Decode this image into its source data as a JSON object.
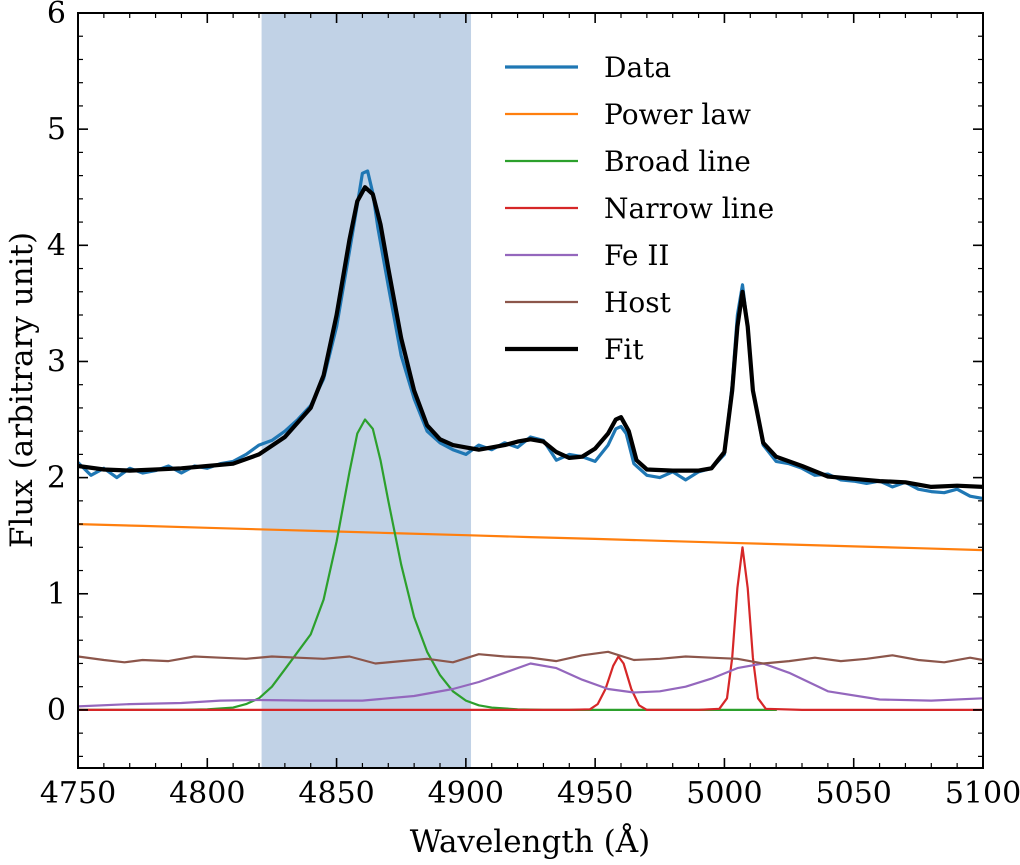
{
  "chart_data": {
    "type": "line",
    "title": "",
    "xlabel": "Wavelength (Å)",
    "ylabel": "Flux (arbitrary unit)",
    "xlim": [
      4750,
      5100
    ],
    "ylim": [
      -0.5,
      6
    ],
    "xticks": [
      4750,
      4800,
      4850,
      4900,
      4950,
      5000,
      5050,
      5100
    ],
    "yticks": [
      0,
      1,
      2,
      3,
      4,
      5,
      6
    ],
    "xtick_labels": [
      "4750",
      "4800",
      "4850",
      "4900",
      "4950",
      "5000",
      "5050",
      "5100"
    ],
    "ytick_labels": [
      "0",
      "1",
      "2",
      "3",
      "4",
      "5",
      "6"
    ],
    "shaded_region": {
      "x0": 4821,
      "x1": 4902,
      "color": "#c1d2e6"
    },
    "grid": false,
    "legend_position": "top-right",
    "series": [
      {
        "name": "Data",
        "color": "#1f77b4",
        "width": 3.2,
        "x": [
          4750,
          4755,
          4760,
          4765,
          4770,
          4775,
          4780,
          4785,
          4790,
          4795,
          4800,
          4805,
          4810,
          4815,
          4820,
          4825,
          4830,
          4835,
          4840,
          4845,
          4850,
          4855,
          4858,
          4860,
          4862,
          4864,
          4866,
          4870,
          4875,
          4880,
          4885,
          4890,
          4895,
          4900,
          4905,
          4910,
          4915,
          4920,
          4925,
          4930,
          4935,
          4940,
          4945,
          4950,
          4955,
          4958,
          4960,
          4962,
          4965,
          4970,
          4975,
          4980,
          4985,
          4990,
          4995,
          5000,
          5003,
          5005,
          5007,
          5009,
          5011,
          5015,
          5020,
          5025,
          5030,
          5035,
          5040,
          5045,
          5050,
          5055,
          5060,
          5065,
          5070,
          5075,
          5080,
          5085,
          5090,
          5095,
          5100
        ],
        "y": [
          2.13,
          2.02,
          2.08,
          2.0,
          2.08,
          2.04,
          2.06,
          2.1,
          2.04,
          2.1,
          2.08,
          2.12,
          2.14,
          2.2,
          2.28,
          2.32,
          2.4,
          2.5,
          2.62,
          2.85,
          3.3,
          3.95,
          4.35,
          4.62,
          4.64,
          4.45,
          4.15,
          3.65,
          3.05,
          2.68,
          2.4,
          2.3,
          2.24,
          2.2,
          2.28,
          2.24,
          2.3,
          2.26,
          2.35,
          2.32,
          2.15,
          2.2,
          2.18,
          2.14,
          2.28,
          2.42,
          2.44,
          2.38,
          2.12,
          2.02,
          2.0,
          2.05,
          1.98,
          2.05,
          2.08,
          2.2,
          2.8,
          3.4,
          3.66,
          3.3,
          2.75,
          2.28,
          2.14,
          2.12,
          2.08,
          2.02,
          2.03,
          1.98,
          1.97,
          1.95,
          1.97,
          1.92,
          1.96,
          1.9,
          1.88,
          1.87,
          1.9,
          1.84,
          1.82
        ]
      },
      {
        "name": "Power law",
        "color": "#ff7f0e",
        "width": 2.2,
        "x": [
          4750,
          4775,
          4800,
          4825,
          4850,
          4875,
          4900,
          4925,
          4950,
          4975,
          5000,
          5025,
          5050,
          5075,
          5100
        ],
        "y": [
          1.6,
          1.584,
          1.568,
          1.552,
          1.536,
          1.52,
          1.504,
          1.488,
          1.472,
          1.456,
          1.44,
          1.424,
          1.408,
          1.392,
          1.376
        ]
      },
      {
        "name": "Broad line",
        "color": "#2ca02c",
        "width": 2.2,
        "x": [
          4750,
          4790,
          4800,
          4810,
          4815,
          4820,
          4825,
          4830,
          4835,
          4840,
          4845,
          4850,
          4855,
          4858,
          4861,
          4864,
          4867,
          4870,
          4875,
          4880,
          4885,
          4890,
          4895,
          4900,
          4905,
          4910,
          4920,
          4930,
          4950,
          5000,
          5020
        ],
        "y": [
          0.0,
          0.0,
          0.005,
          0.02,
          0.05,
          0.1,
          0.2,
          0.35,
          0.5,
          0.65,
          0.95,
          1.45,
          2.05,
          2.38,
          2.5,
          2.42,
          2.15,
          1.8,
          1.25,
          0.8,
          0.5,
          0.3,
          0.16,
          0.08,
          0.04,
          0.02,
          0.005,
          0.0,
          0.0,
          0.0,
          0.0
        ]
      },
      {
        "name": "Narrow line",
        "color": "#d62728",
        "width": 2.2,
        "x": [
          4750,
          4940,
          4948,
          4951,
          4954,
          4957,
          4959,
          4961,
          4964,
          4967,
          4970,
          4990,
          4998,
          5001,
          5003,
          5005,
          5007,
          5009,
          5011,
          5013,
          5016,
          5030,
          5100
        ],
        "y": [
          0.0,
          0.0,
          0.005,
          0.05,
          0.18,
          0.38,
          0.46,
          0.4,
          0.18,
          0.04,
          0.0,
          0.0,
          0.01,
          0.1,
          0.45,
          1.05,
          1.4,
          1.05,
          0.45,
          0.1,
          0.01,
          0.0,
          0.0
        ]
      },
      {
        "name": "Fe II",
        "color": "#9467bd",
        "width": 2.2,
        "x": [
          4750,
          4770,
          4790,
          4805,
          4820,
          4840,
          4860,
          4880,
          4895,
          4905,
          4915,
          4925,
          4935,
          4945,
          4955,
          4965,
          4975,
          4985,
          4995,
          5005,
          5015,
          5025,
          5040,
          5060,
          5080,
          5100
        ],
        "y": [
          0.03,
          0.05,
          0.06,
          0.08,
          0.085,
          0.08,
          0.08,
          0.12,
          0.18,
          0.24,
          0.32,
          0.4,
          0.36,
          0.26,
          0.18,
          0.15,
          0.16,
          0.2,
          0.27,
          0.36,
          0.4,
          0.32,
          0.16,
          0.09,
          0.08,
          0.1
        ]
      },
      {
        "name": "Host",
        "color": "#8c564b",
        "width": 2.2,
        "x": [
          4750,
          4760,
          4768,
          4775,
          4785,
          4795,
          4805,
          4815,
          4825,
          4835,
          4845,
          4855,
          4865,
          4875,
          4885,
          4895,
          4905,
          4915,
          4925,
          4935,
          4945,
          4955,
          4965,
          4975,
          4985,
          4995,
          5005,
          5015,
          5025,
          5035,
          5045,
          5055,
          5065,
          5075,
          5085,
          5095,
          5100
        ],
        "y": [
          0.46,
          0.43,
          0.41,
          0.43,
          0.42,
          0.46,
          0.45,
          0.44,
          0.46,
          0.45,
          0.44,
          0.46,
          0.4,
          0.42,
          0.44,
          0.41,
          0.48,
          0.46,
          0.45,
          0.42,
          0.47,
          0.5,
          0.43,
          0.44,
          0.46,
          0.45,
          0.44,
          0.4,
          0.42,
          0.45,
          0.42,
          0.44,
          0.47,
          0.43,
          0.41,
          0.45,
          0.43
        ]
      },
      {
        "name": "Fit",
        "color": "#000000",
        "width": 4.2,
        "x": [
          4750,
          4760,
          4770,
          4780,
          4790,
          4800,
          4810,
          4820,
          4830,
          4840,
          4845,
          4850,
          4855,
          4858,
          4861,
          4864,
          4867,
          4870,
          4875,
          4880,
          4885,
          4890,
          4895,
          4900,
          4905,
          4910,
          4915,
          4920,
          4925,
          4930,
          4935,
          4940,
          4945,
          4950,
          4955,
          4958,
          4960,
          4963,
          4966,
          4970,
          4980,
          4990,
          4995,
          5000,
          5003,
          5005,
          5007,
          5009,
          5011,
          5015,
          5020,
          5030,
          5040,
          5050,
          5060,
          5070,
          5080,
          5090,
          5100
        ],
        "y": [
          2.1,
          2.07,
          2.06,
          2.07,
          2.08,
          2.1,
          2.12,
          2.2,
          2.35,
          2.6,
          2.88,
          3.4,
          4.05,
          4.38,
          4.5,
          4.44,
          4.18,
          3.8,
          3.2,
          2.75,
          2.45,
          2.33,
          2.28,
          2.26,
          2.24,
          2.26,
          2.28,
          2.31,
          2.33,
          2.31,
          2.22,
          2.17,
          2.18,
          2.25,
          2.38,
          2.5,
          2.52,
          2.4,
          2.15,
          2.07,
          2.06,
          2.06,
          2.08,
          2.22,
          2.75,
          3.3,
          3.6,
          3.3,
          2.75,
          2.3,
          2.18,
          2.1,
          2.01,
          1.99,
          1.97,
          1.96,
          1.92,
          1.93,
          1.92
        ]
      }
    ]
  }
}
